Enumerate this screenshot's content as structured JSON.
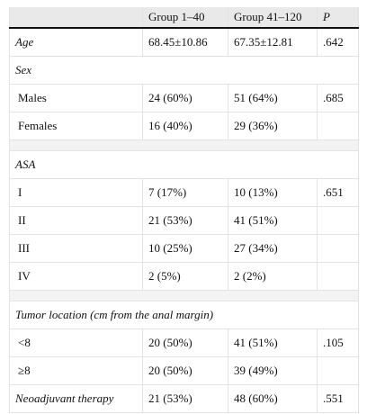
{
  "table": {
    "header": [
      "Group 1–40",
      "Group 41–120",
      "P"
    ],
    "rows": [
      [
        "Age",
        "68.45±10.86",
        "67.35±12.81",
        ".642"
      ],
      [
        "Sex"
      ],
      [
        "Males",
        "24 (60%)",
        "51 (64%)",
        ".685"
      ],
      [
        "Females",
        "16 (40%)",
        "29 (36%)"
      ],
      [
        "ASA"
      ],
      [
        "I",
        "7 (17%)",
        "10 (13%)",
        ".651"
      ],
      [
        "II",
        "21 (53%)",
        "41 (51%)"
      ],
      [
        "III",
        "10 (25%)",
        "27 (34%)"
      ],
      [
        "IV",
        "2 (5%)",
        "2 (2%)"
      ],
      [
        "Tumor location (cm from the anal margin)"
      ],
      [
        "<8",
        "20 (50%)",
        "41 (51%)",
        ".105"
      ],
      [
        "≥8",
        "20 (50%)",
        "39 (49%)"
      ],
      [
        "Neoadjuvant therapy",
        "21 (53%)",
        "48 (60%)",
        ".551"
      ]
    ]
  }
}
